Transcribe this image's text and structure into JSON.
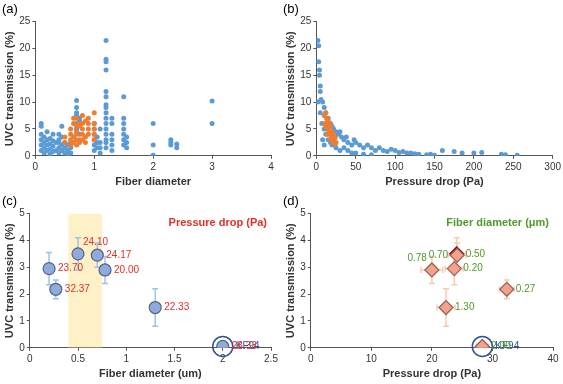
{
  "chart_data": [
    {
      "type": "scatter",
      "title": "(a)",
      "x_label": "Fiber diameter",
      "y_label": "UVC transmission (%)",
      "xlim": [
        0,
        4
      ],
      "xticks": [
        0,
        1,
        2,
        3,
        4
      ],
      "ylim": [
        0,
        25
      ],
      "yticks": [
        0,
        5,
        10,
        15,
        20,
        25
      ],
      "grid": false,
      "series": [
        {
          "color": "#5b9bd5",
          "marker": "circle",
          "x": [
            0.1,
            0.1,
            0.1,
            0.1,
            0.1,
            0.1,
            0.15,
            0.15,
            0.15,
            0.15,
            0.2,
            0.2,
            0.2,
            0.2,
            0.25,
            0.25,
            0.25,
            0.25,
            0.3,
            0.3,
            0.3,
            0.3,
            0.35,
            0.35,
            0.4,
            0.4,
            0.4,
            0.4,
            0.4,
            0.45,
            0.45,
            0.45,
            0.45,
            0.5,
            0.5,
            0.5,
            0.55,
            0.55,
            0.55,
            0.6,
            0.6,
            0.6,
            0.7,
            0.7,
            0.7,
            0.7,
            0.7,
            0.7,
            0.75,
            0.75,
            0.75,
            1,
            1,
            1,
            1,
            1,
            1,
            1.05,
            1.05,
            1.05,
            1.1,
            1.1,
            1.1,
            1.1,
            1.2,
            1.2,
            1.2,
            1.2,
            1.2,
            1.2,
            1.2,
            1.2,
            1.2,
            1.2,
            1.2,
            1.2,
            1.2,
            1.2,
            1.2,
            1.2,
            1.3,
            1.3,
            1.3,
            1.3,
            1.3,
            1.3,
            1.5,
            1.5,
            1.5,
            1.5,
            1.5,
            1.5,
            1.5,
            1.55,
            1.55,
            1.55,
            2,
            2,
            2,
            2.3,
            2.3,
            2.3,
            2.4,
            2.4,
            3,
            3
          ],
          "values": [
            1,
            2,
            3,
            4,
            5.5,
            6,
            0.5,
            1.5,
            2.5,
            3.5,
            1,
            2,
            3,
            4.5,
            0.3,
            1.2,
            2.2,
            3.2,
            0.8,
            1.8,
            2.8,
            4,
            1,
            2.5,
            0.5,
            1.5,
            2.5,
            3,
            4,
            1,
            2,
            3.5,
            5.5,
            0.5,
            1.5,
            2.5,
            0.3,
            1,
            2,
            0.5,
            1.5,
            2.5,
            5,
            6,
            7.5,
            8,
            9,
            10.3,
            4,
            6.5,
            7,
            1,
            2,
            3,
            4,
            5,
            6,
            1.5,
            2.5,
            3.5,
            0.5,
            1.5,
            2.5,
            5,
            1.5,
            2.5,
            3,
            4,
            5,
            6,
            7,
            8,
            9,
            9.5,
            11,
            12,
            16,
            17.5,
            18,
            21.5,
            1,
            2,
            3,
            4,
            6,
            7,
            2,
            3,
            4,
            5,
            6,
            7,
            11,
            1.5,
            2.5,
            3.5,
            0.1,
            2,
            6,
            2,
            2.5,
            3,
            1.5,
            2.2,
            6,
            10.2
          ]
        },
        {
          "color": "#ed7d31",
          "marker": "circle",
          "x": [
            0.5,
            0.5,
            0.6,
            0.6,
            0.6,
            0.6,
            0.65,
            0.65,
            0.65,
            0.65,
            0.7,
            0.7,
            0.7,
            0.7,
            0.7,
            0.7,
            0.75,
            0.75,
            0.75,
            0.75,
            0.8,
            0.8,
            0.8,
            0.8,
            0.8,
            0.85,
            0.85,
            0.85,
            0.9,
            0.9,
            0.9,
            0.9,
            1,
            1,
            1,
            1,
            1
          ],
          "values": [
            2.5,
            3.5,
            2,
            3,
            4,
            5,
            2.5,
            3.5,
            6,
            7,
            2,
            3,
            4,
            4.5,
            5.5,
            7,
            2.5,
            3,
            5.5,
            6,
            3,
            4,
            5,
            6,
            7.5,
            2.5,
            3.5,
            6.5,
            4,
            5,
            6,
            7,
            3,
            4,
            5,
            6,
            8
          ]
        }
      ]
    },
    {
      "type": "scatter",
      "title": "(b)",
      "x_label": "Pressure drop (Pa)",
      "y_label": "UVC transmission (%)",
      "xlim": [
        0,
        300
      ],
      "xticks": [
        0,
        50,
        100,
        150,
        200,
        250,
        300
      ],
      "ylim": [
        0,
        25
      ],
      "yticks": [
        0,
        5,
        10,
        15,
        20,
        25
      ],
      "grid": false,
      "series": [
        {
          "color": "#5b9bd5",
          "marker": "circle",
          "x": [
            2,
            3,
            4,
            5,
            6,
            8,
            10,
            12,
            15,
            18,
            20,
            22,
            25,
            28,
            30,
            32,
            35,
            38,
            40,
            45,
            48,
            50,
            55,
            60,
            65,
            70,
            75,
            80,
            85,
            90,
            95,
            100,
            105,
            110,
            115,
            120,
            125,
            130,
            140,
            145,
            150,
            160,
            175,
            185,
            200,
            210,
            235,
            240,
            255,
            5,
            7,
            10,
            12,
            15,
            18,
            20,
            25,
            30,
            35,
            40,
            45,
            50,
            60,
            70,
            8,
            10,
            3,
            4,
            5,
            2
          ],
          "values": [
            21.5,
            17.5,
            15,
            12,
            10.5,
            10,
            9,
            8,
            7,
            6,
            5.5,
            5,
            4.5,
            4,
            4.5,
            3.5,
            3,
            3.5,
            2.5,
            2,
            3,
            2.5,
            2,
            1.5,
            2,
            1.5,
            1,
            1.5,
            1,
            0.8,
            1.2,
            1,
            0.6,
            0.8,
            0.5,
            0.5,
            0.4,
            0.3,
            0.2,
            0.3,
            0.1,
            1,
            0.8,
            0.5,
            0.5,
            0.6,
            0.3,
            0.2,
            0.1,
            8,
            6,
            5,
            4,
            3,
            2.5,
            2,
            1.5,
            1,
            1.5,
            1,
            0.5,
            0.5,
            0.3,
            0.2,
            3,
            2,
            20.5,
            16,
            13,
            10
          ]
        },
        {
          "color": "#ed7d31",
          "marker": "circle",
          "x": [
            10,
            11,
            12,
            13,
            14,
            15,
            16,
            17,
            18,
            19,
            20,
            21,
            22,
            23,
            24,
            25,
            12,
            14,
            16,
            18,
            20,
            22,
            24,
            15
          ],
          "values": [
            7.5,
            6,
            5.5,
            7,
            6.5,
            5,
            4.5,
            4,
            5.5,
            3.5,
            3,
            4,
            2.5,
            3,
            3.5,
            2.5,
            8,
            4,
            6,
            3,
            4.5,
            3.5,
            2.2,
            6.5
          ]
        }
      ]
    },
    {
      "type": "scatter",
      "title": "(c)",
      "x_label": "Fiber diameter (um)",
      "y_label": "UVC transmission (%)",
      "xlim": [
        0,
        2.5
      ],
      "xticks": [
        0,
        0.5,
        1,
        1.5,
        2,
        2.5
      ],
      "ylim": [
        0,
        5
      ],
      "yticks": [
        0,
        1,
        2,
        3,
        4,
        5
      ],
      "grid": false,
      "annotation": {
        "text": "Pressure drop (Pa)",
        "color": "#e0302a"
      },
      "shaded_x": [
        0.4,
        0.75
      ],
      "series": [
        {
          "color": "#8faadc",
          "marker": "circle",
          "x": [
            0.2,
            0.27,
            0.5,
            0.7,
            0.78,
            1.3,
            2
          ],
          "values": [
            2.95,
            2.18,
            3.5,
            3.45,
            2.9,
            1.5,
            0.05
          ],
          "y_error": [
            0.6,
            0.35,
            0.6,
            0.45,
            0.5,
            0.7,
            0.15
          ],
          "point_labels": [
            "23.70",
            "32.37",
            "24.10",
            "24.17",
            "20.00",
            "22.33",
            "28.33"
          ],
          "point_notes": [
            null,
            null,
            null,
            null,
            null,
            null,
            "KF94"
          ]
        }
      ]
    },
    {
      "type": "scatter",
      "title": "(d)",
      "x_label": "Pressure drop (Pa)",
      "y_label": "UVC transmission (%)",
      "xlim": [
        0,
        40
      ],
      "xticks": [
        0,
        10,
        20,
        30,
        40
      ],
      "ylim": [
        0,
        5
      ],
      "yticks": [
        0,
        1,
        2,
        3,
        4,
        5
      ],
      "grid": false,
      "annotation": {
        "text": "Fiber diameter (μm)",
        "color": "#4e9a2a"
      },
      "series": [
        {
          "colors": [
            "#f4a28c",
            "#f4a28c",
            "#c00000",
            "#f4a28c",
            "#f4a28c",
            "#f4a28c",
            "#f4a28c"
          ],
          "marker": "diamond",
          "x": [
            23.7,
            32.37,
            24.1,
            24.17,
            20,
            22.33,
            28.33
          ],
          "values": [
            2.95,
            2.18,
            3.5,
            3.45,
            2.9,
            1.5,
            0.05
          ],
          "x_error": [
            1.5,
            1.2,
            1.5,
            1.5,
            1.8,
            1.5,
            1
          ],
          "y_error": [
            0.6,
            0.35,
            0.6,
            0.45,
            0.5,
            0.7,
            0.15
          ],
          "point_labels": [
            "0.20",
            "0.27",
            "0.50",
            "0.70",
            "0.78",
            "1.30",
            "2.00"
          ],
          "point_notes": [
            null,
            null,
            null,
            null,
            null,
            null,
            "KF94"
          ]
        }
      ]
    }
  ]
}
